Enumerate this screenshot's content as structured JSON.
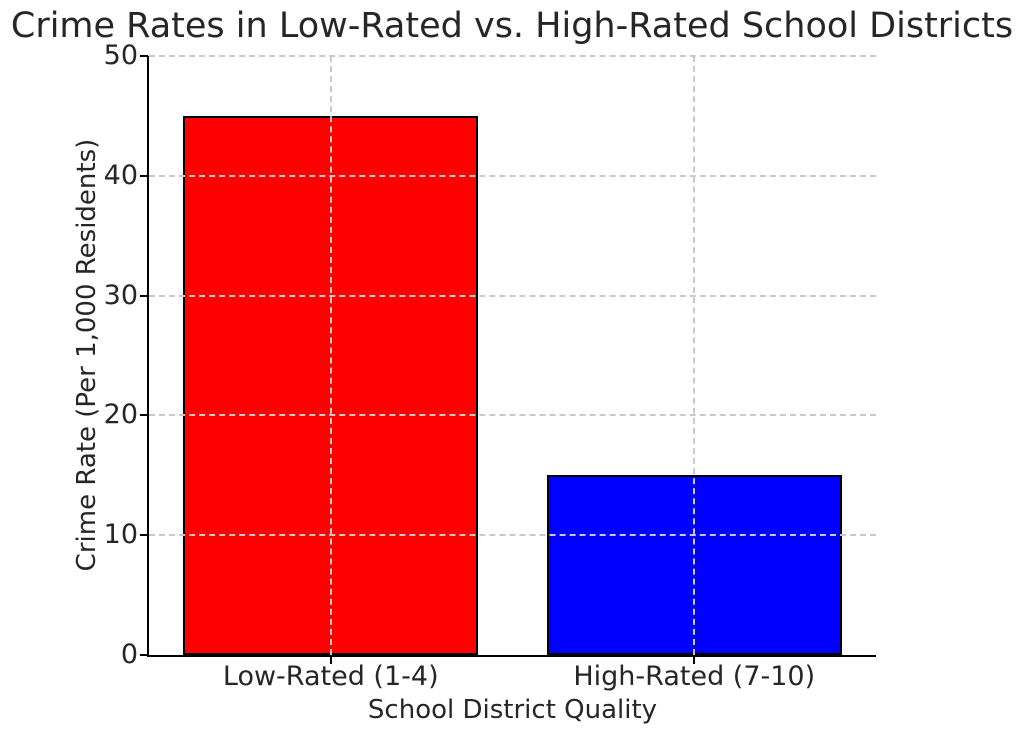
{
  "chart_data": {
    "type": "bar",
    "title": "Crime Rates in Low-Rated vs. High-Rated School Districts",
    "xlabel": "School District Quality",
    "ylabel": "Crime Rate (Per 1,000 Residents)",
    "categories": [
      "Low-Rated (1-4)",
      "High-Rated (7-10)"
    ],
    "values": [
      45,
      15
    ],
    "bar_colors": [
      "#ff0000",
      "#0000ff"
    ],
    "bar_edge_color": "#000000",
    "ylim": [
      0,
      50
    ],
    "yticks": [
      0,
      10,
      20,
      30,
      40,
      50
    ],
    "grid": {
      "visible": true,
      "style": "dashed",
      "color": "#c9c9c9"
    },
    "background_color": "#ffffff",
    "legend": null
  }
}
